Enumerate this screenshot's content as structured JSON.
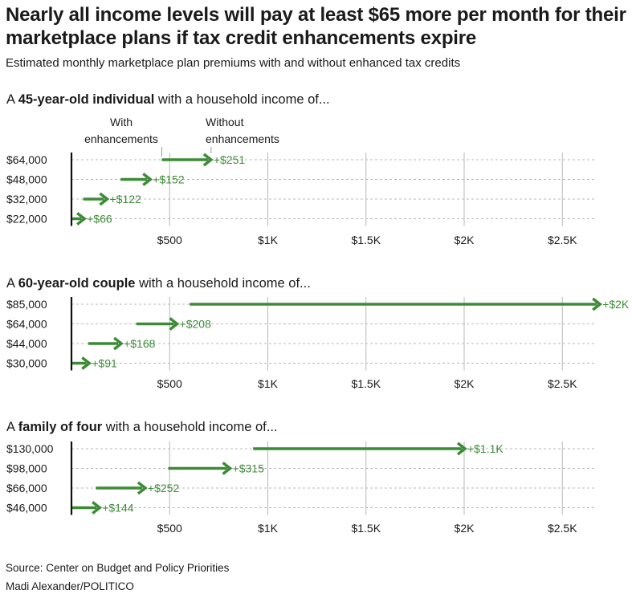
{
  "title": "Nearly all income levels will pay at least $65 more per month for their marketplace plans if tax credit enhancements expire",
  "subtitle": "Estimated monthly marketplace plan premiums with and without enhanced tax credits",
  "legend": {
    "with": "With enhancements",
    "with_l1": "With",
    "with_l2": "enhancements",
    "without": "Without enhancements",
    "without_l1": "Without",
    "without_l2": "enhancements"
  },
  "colors": {
    "arrow": "#3d8b37",
    "label": "#3d8b37",
    "grid": "#b8b8b8",
    "axis": "#111111"
  },
  "chart_data": [
    {
      "type": "arrow-range",
      "title_pre": "A ",
      "title_bold": "45-year-old individual",
      "title_post": " with a household income of...",
      "categories": [
        "$64,000",
        "$48,000",
        "$32,000",
        "$22,000"
      ],
      "with_enhancements": [
        460,
        250,
        60,
        0
      ],
      "without_enhancements": [
        711,
        402,
        182,
        66
      ],
      "change_labels": [
        "+$251",
        "+$152",
        "+$122",
        "+$66"
      ],
      "xlim": [
        0,
        2700
      ],
      "xticks": [
        500,
        1000,
        1500,
        2000,
        2500
      ],
      "xtick_labels": [
        "$500",
        "$1K",
        "$1.5K",
        "$2K",
        "$2.5K"
      ]
    },
    {
      "type": "arrow-range",
      "title_pre": "A ",
      "title_bold": "60-year-old couple",
      "title_post": " with a household income of...",
      "categories": [
        "$85,000",
        "$64,000",
        "$44,000",
        "$30,000"
      ],
      "with_enhancements": [
        602,
        330,
        86,
        0
      ],
      "without_enhancements": [
        2692,
        538,
        254,
        91
      ],
      "change_labels": [
        "+$2K",
        "+$208",
        "+$168",
        "+$91"
      ],
      "xlim": [
        0,
        2700
      ],
      "xticks": [
        500,
        1000,
        1500,
        2000,
        2500
      ],
      "xtick_labels": [
        "$500",
        "$1K",
        "$1.5K",
        "$2K",
        "$2.5K"
      ]
    },
    {
      "type": "arrow-range",
      "title_pre": "A ",
      "title_bold": "family of four",
      "title_post": " with a household income of...",
      "categories": [
        "$130,000",
        "$98,000",
        "$66,000",
        "$46,000"
      ],
      "with_enhancements": [
        925,
        493,
        124,
        0
      ],
      "without_enhancements": [
        2004,
        808,
        376,
        144
      ],
      "change_labels": [
        "+$1.1K",
        "+$315",
        "+$252",
        "+$144"
      ],
      "xlim": [
        0,
        2700
      ],
      "xticks": [
        500,
        1000,
        1500,
        2000,
        2500
      ],
      "xtick_labels": [
        "$500",
        "$1K",
        "$1.5K",
        "$2K",
        "$2.5K"
      ]
    }
  ],
  "footer": {
    "source": "Source: Center on Budget and Policy Priorities",
    "credit": "Madi Alexander/POLITICO"
  }
}
